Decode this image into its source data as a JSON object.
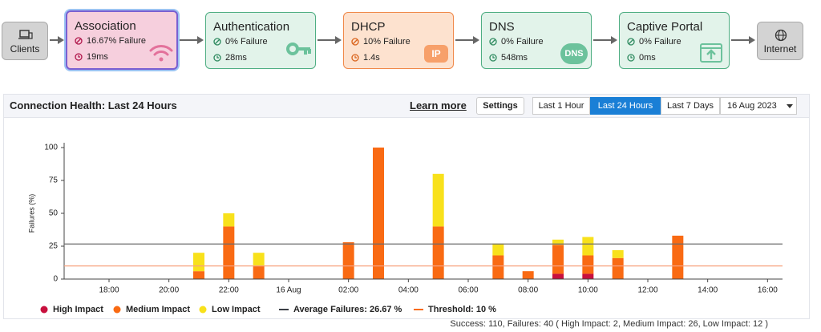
{
  "flow": {
    "nodes": [
      {
        "name": "Clients"
      },
      {
        "name": "Association",
        "failure": "16.67% Failure",
        "latency": "19ms"
      },
      {
        "name": "Authentication",
        "failure": "0% Failure",
        "latency": "28ms"
      },
      {
        "name": "DHCP",
        "failure": "10% Failure",
        "latency": "1.4s",
        "icon_text": "IP"
      },
      {
        "name": "DNS",
        "failure": "0% Failure",
        "latency": "548ms",
        "icon_text": "DNS"
      },
      {
        "name": "Captive Portal",
        "failure": "0% Failure",
        "latency": "0ms"
      },
      {
        "name": "Internet"
      }
    ]
  },
  "panel": {
    "title": "Connection Health: Last 24 Hours",
    "learn_more": "Learn more",
    "settings": "Settings",
    "ranges": [
      "Last 1 Hour",
      "Last 24 Hours",
      "Last 7 Days"
    ],
    "active_range": 1,
    "date": "16 Aug 2023",
    "summary": "Success: 110, Failures: 40 ( High Impact: 2, Medium Impact: 26, Low Impact: 12 )"
  },
  "chart_data": {
    "type": "stacked_bar",
    "ylabel": "Failures (%)",
    "categories": [
      null,
      "18:00",
      null,
      "20:00",
      null,
      "22:00",
      null,
      "16 Aug",
      null,
      "02:00",
      null,
      "04:00",
      null,
      "06:00",
      null,
      "08:00",
      null,
      "10:00",
      null,
      "12:00",
      null,
      "14:00",
      null,
      "16:00"
    ],
    "series": [
      {
        "name": "High Impact",
        "color": "#c8103e",
        "values": [
          0,
          0,
          0,
          0,
          0,
          0,
          0,
          0,
          0,
          0,
          0,
          0,
          0,
          0,
          0,
          0,
          4,
          4,
          0,
          0,
          0,
          0,
          0,
          0
        ]
      },
      {
        "name": "Medium Impact",
        "color": "#f96a13",
        "values": [
          0,
          0,
          0,
          0,
          6,
          40,
          10,
          0,
          0,
          28,
          100,
          0,
          40,
          0,
          18,
          6,
          22,
          14,
          16,
          0,
          33,
          0,
          0,
          0
        ]
      },
      {
        "name": "Low Impact",
        "color": "#f8e11b",
        "values": [
          0,
          0,
          0,
          0,
          14,
          10,
          10,
          0,
          0,
          0,
          0,
          0,
          40,
          0,
          9,
          0,
          4,
          14,
          6,
          0,
          0,
          0,
          0,
          0
        ]
      }
    ],
    "ylim": [
      0,
      100
    ],
    "yticks": [
      0,
      25,
      50,
      75,
      100
    ],
    "average": {
      "label": "Average Failures: 26.67 %",
      "value": 26.67,
      "color": "#6b6b6b"
    },
    "threshold": {
      "label": "Threshold: 10 %",
      "value": 10,
      "color": "#f7a27f"
    }
  }
}
